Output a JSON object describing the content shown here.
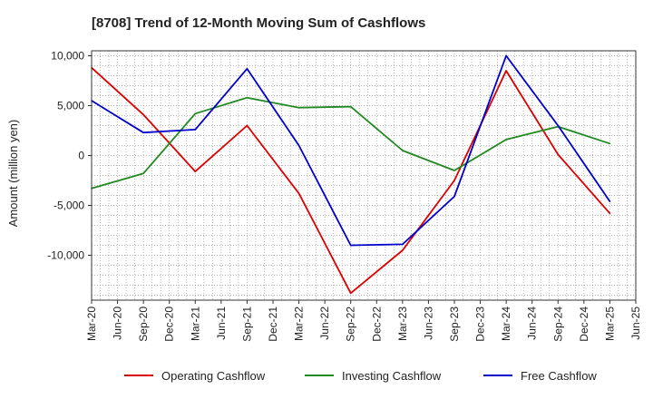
{
  "chart_data": {
    "type": "line",
    "title": "[8708]  Trend of 12-Month Moving Sum of Cashflows",
    "xlabel": "",
    "ylabel": "Amount (million yen)",
    "ylim": [
      -14500,
      10500
    ],
    "yticks": [
      10000,
      5000,
      0,
      -5000,
      -10000
    ],
    "ytick_labels": [
      "10,000",
      "5,000",
      "0",
      "-5,000",
      "-10,000"
    ],
    "categories": [
      "Mar-20",
      "Jun-20",
      "Sep-20",
      "Dec-20",
      "Mar-21",
      "Jun-21",
      "Sep-21",
      "Dec-21",
      "Mar-22",
      "Jun-22",
      "Sep-22",
      "Dec-22",
      "Mar-23",
      "Jun-23",
      "Sep-23",
      "Dec-23",
      "Mar-24",
      "Jun-24",
      "Sep-24",
      "Dec-24",
      "Mar-25",
      "Jun-25"
    ],
    "grid": true,
    "legend_position": "bottom",
    "series": [
      {
        "name": "Operating Cashflow",
        "color": "#dd0000",
        "values": [
          8800,
          null,
          4100,
          null,
          -1600,
          null,
          3000,
          null,
          -3800,
          null,
          -13800,
          null,
          -9500,
          null,
          -2500,
          null,
          8500,
          null,
          100,
          null,
          -5800,
          null
        ]
      },
      {
        "name": "Investing Cashflow",
        "color": "#228822",
        "values": [
          -3300,
          null,
          -1800,
          null,
          4200,
          null,
          5800,
          null,
          4800,
          null,
          4900,
          null,
          500,
          null,
          -1500,
          null,
          1600,
          null,
          2900,
          null,
          1200,
          null
        ]
      },
      {
        "name": "Free Cashflow",
        "color": "#0000cc",
        "values": [
          5500,
          null,
          2300,
          null,
          2600,
          null,
          8700,
          null,
          1000,
          null,
          -9000,
          null,
          -8900,
          null,
          -4100,
          null,
          10000,
          null,
          3000,
          null,
          -4600,
          null
        ]
      }
    ]
  }
}
